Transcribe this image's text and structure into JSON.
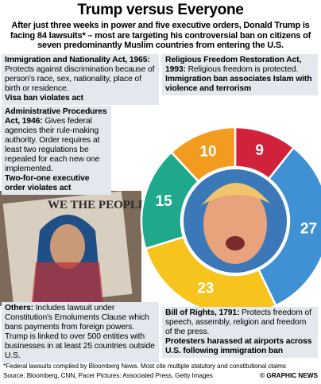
{
  "chart_data": {
    "type": "donut",
    "title": "Trump versus Everyone",
    "subtitle": "After just three weeks in power and five executive orders, Donald Trump is facing 84 lawsuits* – most are targeting his controversial ban on citizens of seven predominantly Muslim countries from entering the U.S.",
    "values": [
      9,
      27,
      23,
      15,
      10
    ],
    "colors": [
      "#d2213b",
      "#3f91d3",
      "#f6c41c",
      "#1fa88c",
      "#f39b1f"
    ],
    "annotations": [
      {
        "heading": "Religious Freedom Restoration Act, 1993:",
        "text": "Religious freedom is protected.",
        "highlight": "Immigration ban associates Islam with violence and terrorism"
      },
      {
        "heading": "Bill of Rights, 1791:",
        "text": "Protects freedom of speech, assembly, religion and freedom of the press.",
        "highlight": "Protesters harassed at airports across U.S. following immigration ban"
      },
      {
        "heading": "Others:",
        "text": "Includes lawsuit under Constitution's Emoluments Clause which bans payments from foreign powers. Trump is linked to over 500 entities with businesses in at least 25 countries outside U.S.",
        "highlight": ""
      },
      {
        "heading": "Administrative Procedures Act, 1946:",
        "text": "Gives federal agencies their rule-making authority. Order requires at least two regulations be repealed for each new one implemented.",
        "highlight": "Two-for-one executive order violates act"
      },
      {
        "heading": "Immigration and Nationality Act, 1965:",
        "text": "Protects against discrimination because of person's race, sex, nationality, place of birth or residence.",
        "highlight": "Visa ban violates act"
      }
    ],
    "photo_text": "WE THE PEOPLE",
    "footnote": "*Federal lawsuits compiled by Bloomberg News. Most cite multiple statutory and constitutional claims",
    "source": "Source: Bloomberg, CNN, Pacer   Pictures: Associated Press, Getty Images",
    "credit": "© GRAPHIC NEWS"
  }
}
